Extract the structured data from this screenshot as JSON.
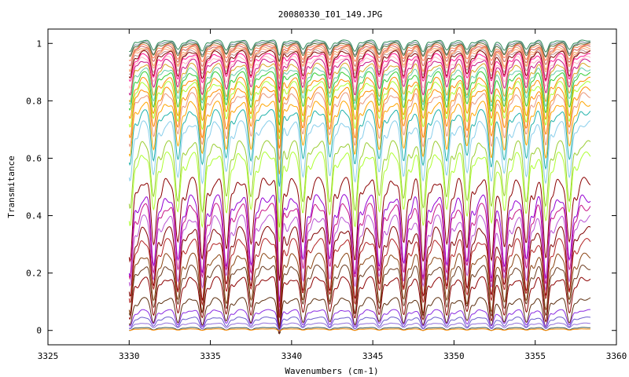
{
  "chart_data": {
    "type": "line",
    "title": "20080330_I01_149.JPG",
    "xlabel": "Wavenumbers (cm-1)",
    "ylabel": "Transmitance",
    "xlim": [
      3325,
      3360
    ],
    "ylim": [
      -0.05,
      1.05
    ],
    "x_ticks": [
      "3325",
      "3330",
      "3335",
      "3340",
      "3345",
      "3350",
      "3355",
      "3360"
    ],
    "y_ticks": [
      "0",
      "0.2",
      "0.4",
      "0.6",
      "0.8",
      "1"
    ],
    "x_range_of_data": [
      3330,
      3358.4
    ],
    "absorption_lines_cm1": [
      3330.05,
      3331.5,
      3333.0,
      3334.5,
      3335.98,
      3337.5,
      3339.25,
      3340.7,
      3342.35,
      3343.9,
      3345.4,
      3346.9,
      3348.1,
      3349.55,
      3350.8,
      3352.3,
      3353.1,
      3354.45,
      3355.65,
      3357.1
    ],
    "grid": false,
    "legend": "none",
    "series": [
      {
        "baseline": 1.01,
        "depth": 0.04,
        "color": "#2e8b57"
      },
      {
        "baseline": 1.005,
        "depth": 0.05,
        "color": "#708090"
      },
      {
        "baseline": 1.0,
        "depth": 0.05,
        "color": "#556b2f"
      },
      {
        "baseline": 0.995,
        "depth": 0.06,
        "color": "#ff7f50"
      },
      {
        "baseline": 0.99,
        "depth": 0.07,
        "color": "#cd5c5c"
      },
      {
        "baseline": 0.985,
        "depth": 0.08,
        "color": "#f4a460"
      },
      {
        "baseline": 0.98,
        "depth": 0.08,
        "color": "#ffa07a"
      },
      {
        "baseline": 0.975,
        "depth": 0.09,
        "color": "#bc8f8f"
      },
      {
        "baseline": 0.97,
        "depth": 0.1,
        "color": "#8b0000"
      },
      {
        "baseline": 0.96,
        "depth": 0.1,
        "color": "#ff1493"
      },
      {
        "baseline": 0.95,
        "depth": 0.11,
        "color": "#ffb6c1"
      },
      {
        "baseline": 0.94,
        "depth": 0.12,
        "color": "#c71585"
      },
      {
        "baseline": 0.925,
        "depth": 0.13,
        "color": "#daa520"
      },
      {
        "baseline": 0.91,
        "depth": 0.13,
        "color": "#66cdaa"
      },
      {
        "baseline": 0.895,
        "depth": 0.14,
        "color": "#32cd32"
      },
      {
        "baseline": 0.875,
        "depth": 0.15,
        "color": "#ff8c00"
      },
      {
        "baseline": 0.86,
        "depth": 0.16,
        "color": "#adff2f"
      },
      {
        "baseline": 0.84,
        "depth": 0.17,
        "color": "#ff8c00"
      },
      {
        "baseline": 0.82,
        "depth": 0.18,
        "color": "#e9967a"
      },
      {
        "baseline": 0.79,
        "depth": 0.19,
        "color": "#ffa500"
      },
      {
        "baseline": 0.76,
        "depth": 0.2,
        "color": "#20b2aa"
      },
      {
        "baseline": 0.72,
        "depth": 0.22,
        "color": "#87ceeb"
      },
      {
        "baseline": 0.65,
        "depth": 0.24,
        "color": "#9acd32"
      },
      {
        "baseline": 0.61,
        "depth": 0.25,
        "color": "#adff2f"
      },
      {
        "baseline": 0.52,
        "depth": 0.28,
        "color": "#8b0000"
      },
      {
        "baseline": 0.46,
        "depth": 0.28,
        "color": "#9400d3"
      },
      {
        "baseline": 0.43,
        "depth": 0.27,
        "color": "#c71585"
      },
      {
        "baseline": 0.39,
        "depth": 0.26,
        "color": "#ba55d3"
      },
      {
        "baseline": 0.35,
        "depth": 0.25,
        "color": "#800000"
      },
      {
        "baseline": 0.31,
        "depth": 0.22,
        "color": "#b22222"
      },
      {
        "baseline": 0.26,
        "depth": 0.2,
        "color": "#8b4513"
      },
      {
        "baseline": 0.22,
        "depth": 0.17,
        "color": "#6b3a1e"
      },
      {
        "baseline": 0.18,
        "depth": 0.15,
        "color": "#8b0000"
      },
      {
        "baseline": 0.11,
        "depth": 0.1,
        "color": "#5c2e0e"
      },
      {
        "baseline": 0.07,
        "depth": 0.06,
        "color": "#8a2be2"
      },
      {
        "baseline": 0.045,
        "depth": 0.04,
        "color": "#6a5acd"
      },
      {
        "baseline": 0.025,
        "depth": 0.02,
        "color": "#9370db"
      },
      {
        "baseline": 0.01,
        "depth": 0.01,
        "color": "#2f4f4f"
      },
      {
        "baseline": 0.005,
        "depth": 0.005,
        "color": "#ff8c00"
      }
    ]
  }
}
